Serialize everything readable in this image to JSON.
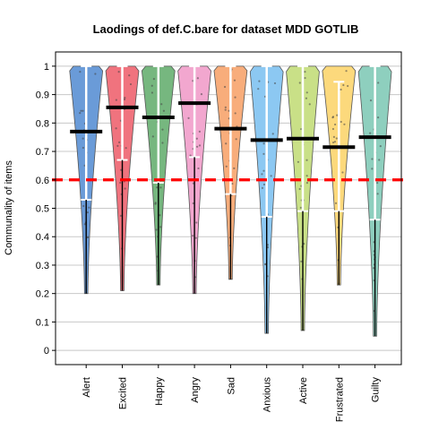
{
  "chart_data": {
    "type": "violin",
    "title": "Laodings of def.C.bare for dataset MDD GOTLIB",
    "xlabel": "",
    "ylabel": "Communality of items",
    "ylim": [
      -0.05,
      1.05
    ],
    "yticks": [
      "0",
      "0.1",
      "0.2",
      "0.3",
      "0.4",
      "0.5",
      "0.6",
      "0.7",
      "0.8",
      "0.9",
      "1"
    ],
    "grid": true,
    "reference_line": {
      "y": 0.6,
      "color": "#ff0000",
      "style": "dashed"
    },
    "categories": [
      "Alert",
      "Excited",
      "Happy",
      "Angry",
      "Sad",
      "Anxious",
      "Active",
      "Frustrated",
      "Guilty"
    ],
    "series": [
      {
        "category": "Alert",
        "color": "#6a9bd8",
        "min": 0.2,
        "max": 1.0,
        "mean": 0.77,
        "ci": [
          0.53,
          1.0
        ]
      },
      {
        "category": "Excited",
        "color": "#f0737e",
        "min": 0.21,
        "max": 1.0,
        "mean": 0.855,
        "ci": [
          0.67,
          1.0
        ]
      },
      {
        "category": "Happy",
        "color": "#76b77f",
        "min": 0.23,
        "max": 1.0,
        "mean": 0.82,
        "ci": [
          0.59,
          1.0
        ]
      },
      {
        "category": "Angry",
        "color": "#f2a7cf",
        "min": 0.2,
        "max": 1.0,
        "mean": 0.87,
        "ci": [
          0.68,
          1.0
        ]
      },
      {
        "category": "Sad",
        "color": "#f8ad7b",
        "min": 0.25,
        "max": 1.0,
        "mean": 0.78,
        "ci": [
          0.55,
          1.0
        ]
      },
      {
        "category": "Anxious",
        "color": "#8cc8f2",
        "min": 0.06,
        "max": 1.0,
        "mean": 0.74,
        "ci": [
          0.47,
          1.0
        ]
      },
      {
        "category": "Active",
        "color": "#c9e087",
        "min": 0.07,
        "max": 1.0,
        "mean": 0.745,
        "ci": [
          0.49,
          1.0
        ]
      },
      {
        "category": "Frustrated",
        "color": "#fcd97c",
        "min": 0.23,
        "max": 1.0,
        "mean": 0.715,
        "ci": [
          0.49,
          0.945
        ]
      },
      {
        "category": "Guilty",
        "color": "#8ecfbe",
        "min": 0.05,
        "max": 1.0,
        "mean": 0.75,
        "ci": [
          0.46,
          1.0
        ]
      }
    ]
  }
}
